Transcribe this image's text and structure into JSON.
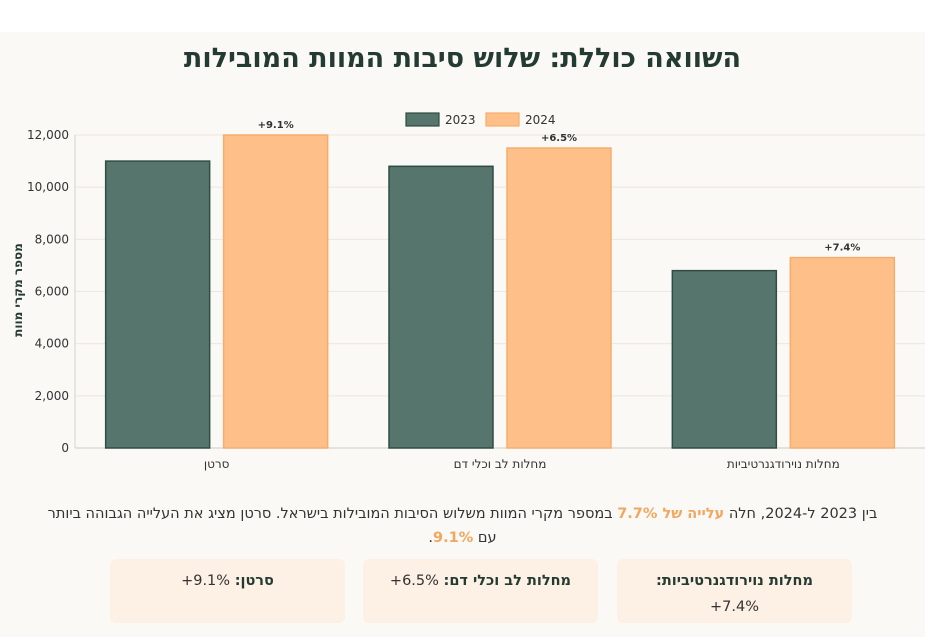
{
  "title": "השוואה כוללת: שלוש סיבות המוות המובילות",
  "chart_data": {
    "type": "bar",
    "categories": [
      "סרטן",
      "מחלות לב וכלי דם",
      "מחלות נוירודגנרטיביות"
    ],
    "series": [
      {
        "name": "2023",
        "color": "#56756c",
        "values": [
          11000,
          10800,
          6800
        ]
      },
      {
        "name": "2024",
        "color": "#ffbf89",
        "values": [
          12000,
          11500,
          7300
        ]
      }
    ],
    "data_labels": [
      "+9.1%",
      "+6.5%",
      "+7.4%"
    ],
    "ylabel": "מספר מקרי מוות",
    "ylim": [
      0,
      12000
    ],
    "yticks": [
      0,
      2000,
      4000,
      6000,
      8000,
      10000,
      12000
    ],
    "ytick_labels": [
      "0",
      "2,000",
      "4,000",
      "6,000",
      "8,000",
      "10,000",
      "12,000"
    ],
    "legend": "top-center"
  },
  "summary": {
    "part1": "בין 2023 ל-2024, חלה ",
    "highlight1": "עלייה של 7.7%",
    "part2": " במספר מקרי המוות משלוש הסיבות המובילות בישראל. סרטן מציג את העלייה הגבוהה ביותר עם ",
    "highlight2": "9.1%",
    "part3": "."
  },
  "cards": [
    {
      "label": "מחלות נוירודגנרטיביות:",
      "value": "+7.4%"
    },
    {
      "label": "מחלות לב וכלי דם:",
      "value": "+6.5%"
    },
    {
      "label": "סרטן:",
      "value": "+9.1%"
    }
  ]
}
